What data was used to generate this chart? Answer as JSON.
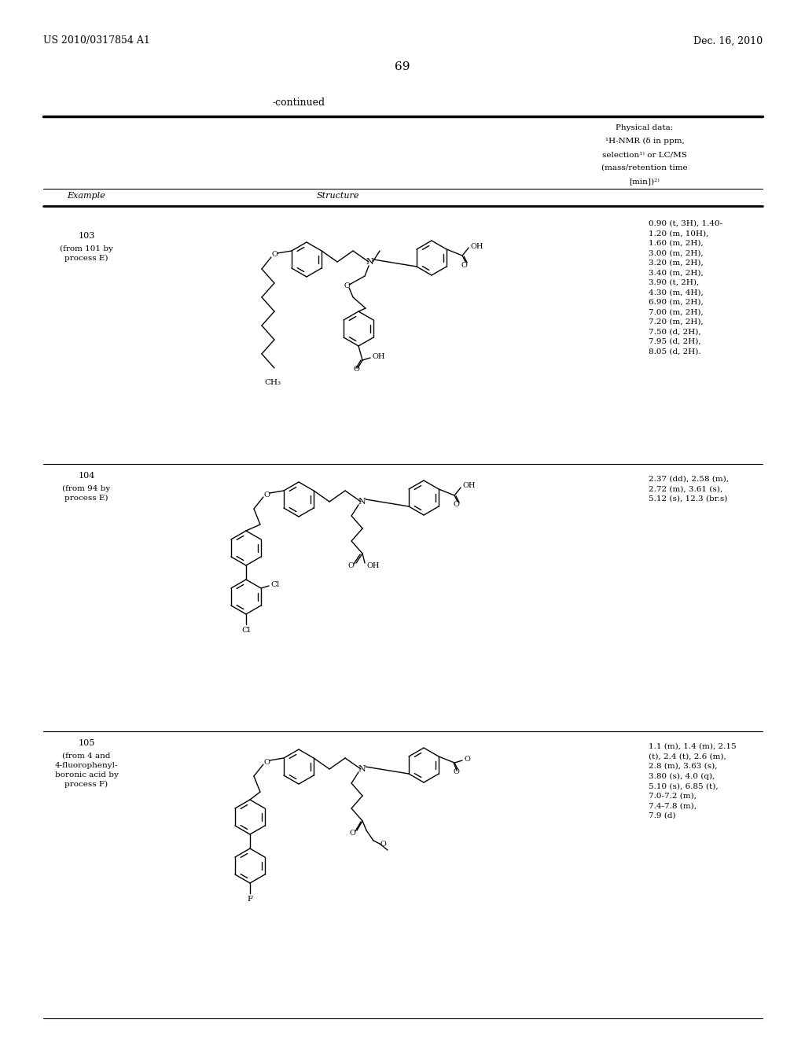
{
  "bg_color": "#ffffff",
  "header_left": "US 2010/0317854 A1",
  "header_right": "Dec. 16, 2010",
  "page_number": "69",
  "continued_text": "-continued",
  "col_headers": {
    "example": "Example",
    "structure": "Structure",
    "physical": "Physical data:\n¹H-NMR (δ in ppm,\nselection¹⁾ or LC/MS\n(mass/retention time\n[min])²⁾"
  },
  "examples": [
    {
      "id": "103",
      "source": "(from 101 by\nprocess E)",
      "nmr": "0.90 (t, 3H), 1.40-\n1.20 (m, 10H),\n1.60 (m, 2H),\n3.00 (m, 2H),\n3.20 (m, 2H),\n3.40 (m, 2H),\n3.90 (t, 2H),\n4.30 (m, 4H),\n6.90 (m, 2H),\n7.00 (m, 2H),\n7.20 (m, 2H),\n7.50 (d, 2H),\n7.95 (d, 2H),\n8.05 (d, 2H)."
    },
    {
      "id": "104",
      "source": "(from 94 by\nprocess E)",
      "nmr": "2.37 (dd), 2.58 (m),\n2.72 (m), 3.61 (s),\n5.12 (s), 12.3 (br.s)"
    },
    {
      "id": "105",
      "source": "(from 4 and\n4-fluorophenyl-\nboronic acid by\nprocess F)",
      "nmr": "1.1 (m), 1.4 (m), 2.15\n(t), 2.4 (t), 2.6 (m),\n2.8 (m), 3.63 (s),\n3.80 (s), 4.0 (q),\n5.10 (s), 6.85 (t),\n7.0-7.2 (m),\n7.4-7.8 (m),\n7.9 (d)"
    }
  ],
  "font_size_header": 9,
  "font_size_body": 8,
  "font_size_title": 10,
  "font_size_page": 11
}
